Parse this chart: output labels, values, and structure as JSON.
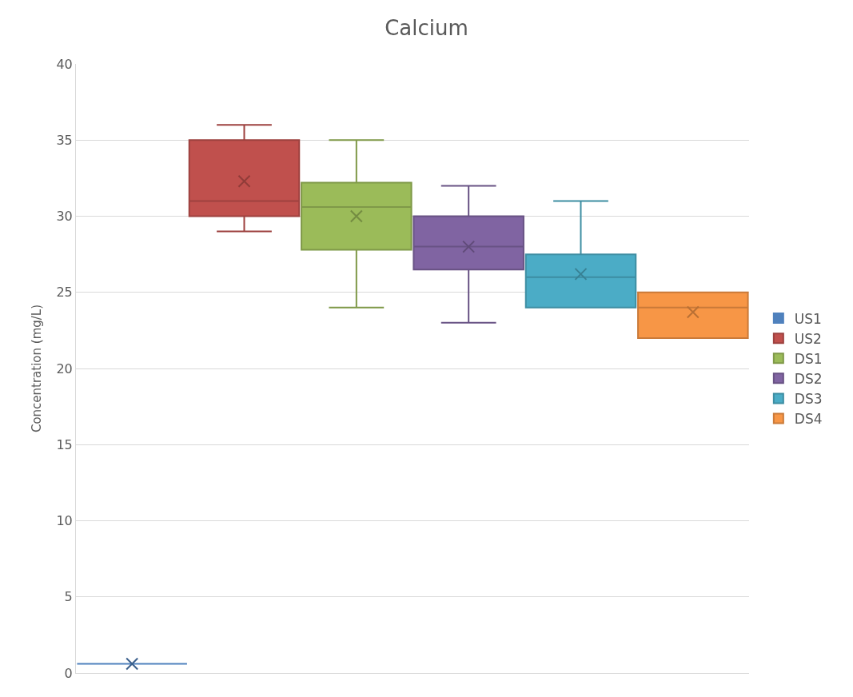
{
  "chart_data": {
    "type": "box",
    "title": "Calcium",
    "ylabel": "Concentration (mg/L)",
    "categories": [
      null
    ],
    "series": [
      {
        "name": "US1",
        "color": "#4f81bd",
        "boxes": [
          {
            "low": 0.6,
            "q1": 0.6,
            "median": 0.6,
            "q3": 0.6,
            "high": 0.6,
            "mean": 0.6
          }
        ]
      },
      {
        "name": "US2",
        "color": "#c0504d",
        "boxes": [
          {
            "low": 29,
            "q1": 30,
            "median": 31,
            "q3": 35,
            "high": 36,
            "mean": 32.3
          }
        ]
      },
      {
        "name": "DS1",
        "color": "#9bbb59",
        "boxes": [
          {
            "low": 24,
            "q1": 27.8,
            "median": 30.6,
            "q3": 32.2,
            "high": 35,
            "mean": 30
          }
        ]
      },
      {
        "name": "DS2",
        "color": "#8064a2",
        "boxes": [
          {
            "low": 23,
            "q1": 26.5,
            "median": 28,
            "q3": 30,
            "high": 32,
            "mean": 28
          }
        ]
      },
      {
        "name": "DS3",
        "color": "#4bacc6",
        "boxes": [
          {
            "low": 24,
            "q1": 24,
            "median": 26,
            "q3": 27.5,
            "high": 31,
            "mean": 26.2
          }
        ]
      },
      {
        "name": "DS4",
        "color": "#f79646",
        "boxes": [
          {
            "low": 22,
            "q1": 22,
            "median": 24,
            "q3": 25,
            "high": 25,
            "mean": 23.7
          }
        ]
      }
    ],
    "ylim": [
      0,
      40
    ],
    "yticks": [
      0,
      5,
      10,
      15,
      20,
      25,
      30,
      35,
      40
    ],
    "grid": "y",
    "legend": "right",
    "tick_labels": "y",
    "marker": "cross"
  }
}
